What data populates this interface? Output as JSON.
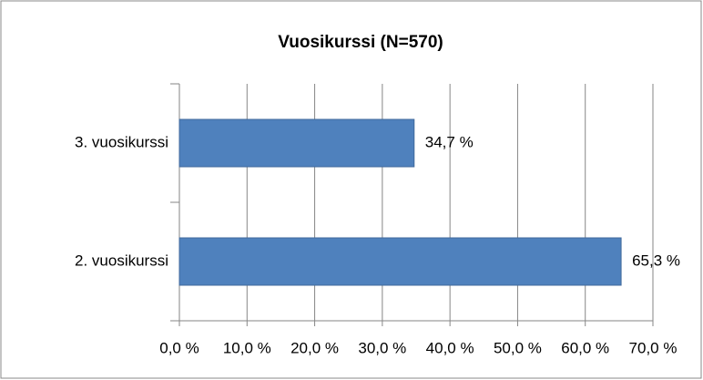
{
  "chart_data": {
    "type": "bar",
    "orientation": "horizontal",
    "title": "Vuosikurssi (N=570)",
    "categories": [
      "3. vuosikurssi",
      "2. vuosikurssi"
    ],
    "values": [
      34.7,
      65.3
    ],
    "value_labels": [
      "34,7 %",
      "65,3 %"
    ],
    "color": "#4f81bd",
    "xlim": [
      0,
      70
    ],
    "xticks": [
      {
        "value": 0,
        "label": "0,0 %"
      },
      {
        "value": 10,
        "label": "10,0 %"
      },
      {
        "value": 20,
        "label": "20,0 %"
      },
      {
        "value": 30,
        "label": "30,0 %"
      },
      {
        "value": 40,
        "label": "40,0 %"
      },
      {
        "value": 50,
        "label": "50,0 %"
      },
      {
        "value": 60,
        "label": "60,0 %"
      },
      {
        "value": 70,
        "label": "70,0 %"
      }
    ],
    "grid": true
  }
}
